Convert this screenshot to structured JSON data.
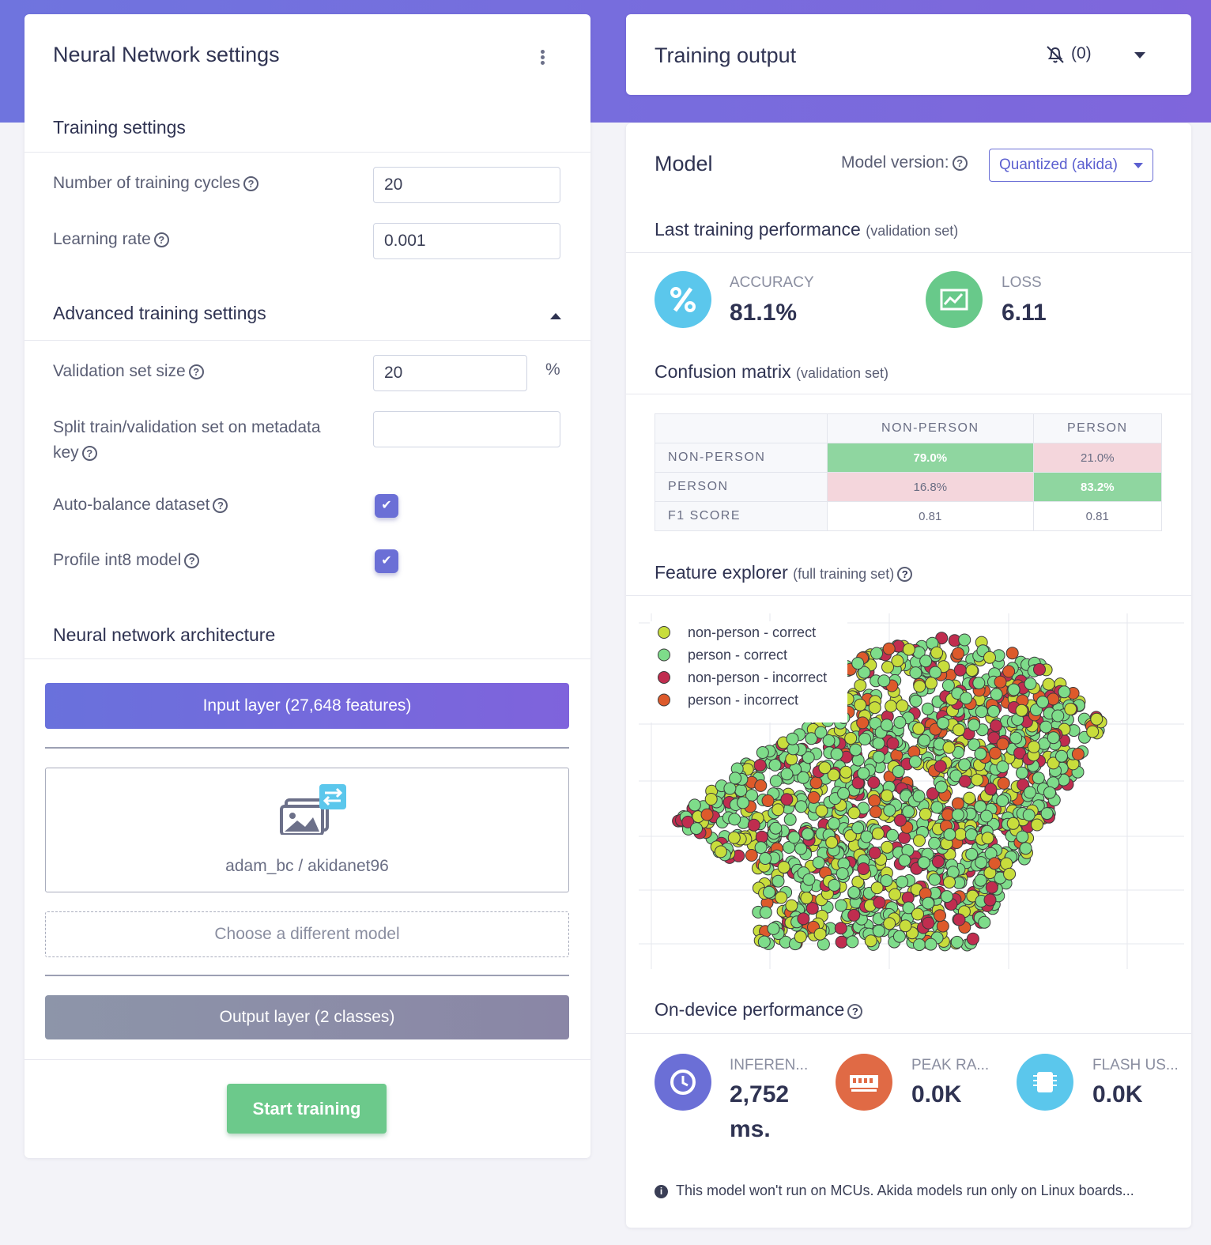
{
  "left": {
    "title": "Neural Network settings",
    "training_settings": {
      "title": "Training settings",
      "cycles_label": "Number of training cycles",
      "cycles_value": "20",
      "lr_label": "Learning rate",
      "lr_value": "0.001"
    },
    "advanced": {
      "title": "Advanced training settings",
      "val_label": "Validation set size",
      "val_value": "20",
      "val_unit": "%",
      "split_label_1": "Split train/validation set on metadata",
      "split_label_2": "key",
      "split_value": "",
      "autobalance_label": "Auto-balance dataset",
      "autobalance_checked": true,
      "profile_label": "Profile int8 model",
      "profile_checked": true
    },
    "architecture": {
      "title": "Neural network architecture",
      "input_layer": "Input layer (27,648 features)",
      "model_name": "adam_bc / akidanet96",
      "choose_model": "Choose a different model",
      "output_layer": "Output layer (2 classes)"
    },
    "start_button": "Start training"
  },
  "output_card": {
    "title": "Training output",
    "notif_count": "(0)"
  },
  "model": {
    "title": "Model",
    "version_label": "Model version:",
    "version_value": "Quantized (akida)",
    "last_perf_title": "Last training performance",
    "last_perf_sub": "(validation set)",
    "accuracy_label": "ACCURACY",
    "accuracy_value": "81.1%",
    "loss_label": "LOSS",
    "loss_value": "6.11",
    "confusion_title": "Confusion matrix",
    "confusion_sub": "(validation set)",
    "confusion": {
      "columns": [
        "NON-PERSON",
        "PERSON"
      ],
      "rows": [
        {
          "label": "NON-PERSON",
          "cells": [
            "79.0%",
            "21.0%"
          ]
        },
        {
          "label": "PERSON",
          "cells": [
            "16.8%",
            "83.2%"
          ]
        },
        {
          "label": "F1 SCORE",
          "cells": [
            "0.81",
            "0.81"
          ]
        }
      ]
    },
    "feature_title": "Feature explorer",
    "feature_sub": "(full training set)",
    "legend": [
      {
        "label": "non-person - correct",
        "color": "#c8dd3c"
      },
      {
        "label": "person - correct",
        "color": "#7edc8a"
      },
      {
        "label": "non-person - incorrect",
        "color": "#c02d4f"
      },
      {
        "label": "person - incorrect",
        "color": "#dd5a2b"
      }
    ],
    "ondevice_title": "On-device performance",
    "inference_label": "INFEREN...",
    "inference_value_1": "2,752",
    "inference_value_2": "ms.",
    "ram_label": "PEAK RA...",
    "ram_value": "0.0K",
    "flash_label": "FLASH US...",
    "flash_value": "0.0K",
    "note": "This model won't run on MCUs. Akida models run only on Linux boards..."
  },
  "colors": {
    "accent": "#6b6fd6",
    "accuracy_circle": "#5bc7ec",
    "loss_circle": "#68c98a",
    "inference_circle": "#6b6fd6",
    "ram_circle": "#e06a45",
    "flash_circle": "#5bc7ec",
    "good_cell": "#8fd6a0",
    "bad_cell": "#f4d6dc"
  },
  "icons": [
    "kebab-menu-icon",
    "help-icon",
    "chevron-up-icon",
    "check-icon",
    "model-images-icon",
    "bell-off-icon",
    "chevron-down-icon",
    "percent-icon",
    "chart-icon",
    "clock-icon",
    "ram-icon",
    "chip-icon",
    "info-icon"
  ]
}
